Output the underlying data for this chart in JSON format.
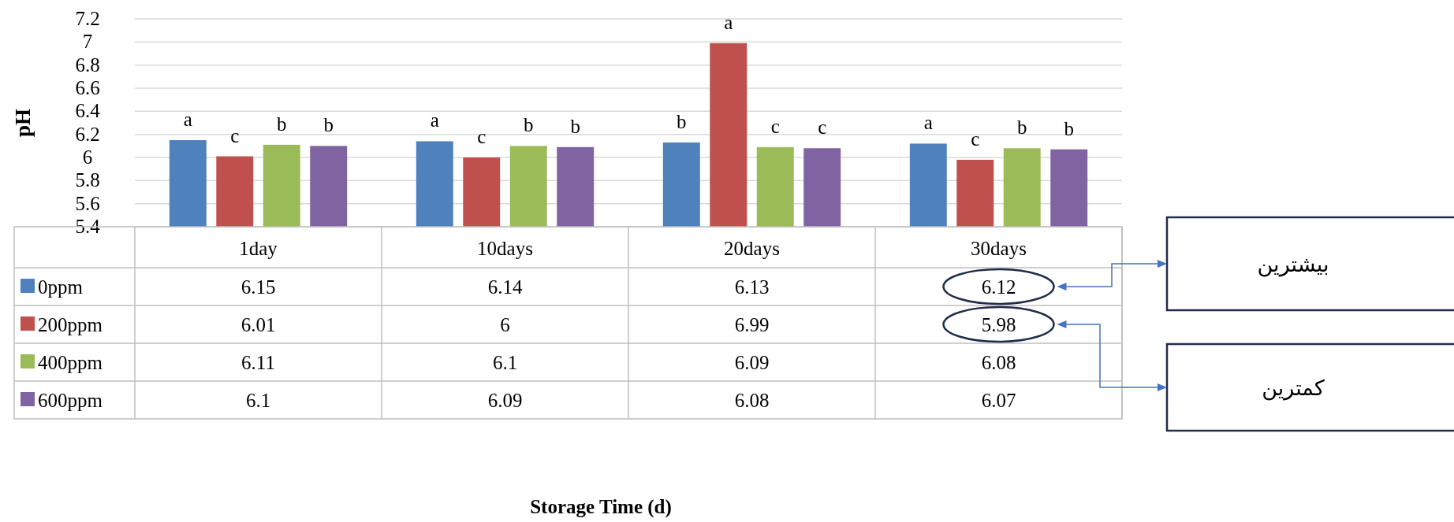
{
  "chart_data": {
    "type": "bar",
    "ylabel": "pH",
    "categories": [
      "1day",
      "10days",
      "20days",
      "30days"
    ],
    "series": [
      {
        "name": "0ppm",
        "color": "#4f81bd",
        "values": [
          6.15,
          6.14,
          6.13,
          6.12
        ]
      },
      {
        "name": "200ppm",
        "color": "#c0504d",
        "values": [
          6.01,
          6,
          6.99,
          5.98
        ]
      },
      {
        "name": "400ppm",
        "color": "#9bbb59",
        "values": [
          6.11,
          6.1,
          6.09,
          6.08
        ]
      },
      {
        "name": "600ppm",
        "color": "#8064a2",
        "values": [
          6.1,
          6.09,
          6.08,
          6.07
        ]
      }
    ],
    "ylim": [
      5.4,
      7.2
    ],
    "yticks": [
      5.4,
      5.6,
      5.8,
      6,
      6.2,
      6.4,
      6.6,
      6.8,
      7,
      7.2
    ],
    "grid": "y",
    "data_labels": true,
    "legend": "bottom left",
    "annotations": [
      "a",
      "c",
      "b",
      "b",
      "a",
      "c",
      "b",
      "b",
      "b",
      "a",
      "c",
      "c",
      "a",
      "c",
      "b",
      "b",
      "Storage Time (d)",
      "بیشترین",
      "کمترین"
    ]
  }
}
